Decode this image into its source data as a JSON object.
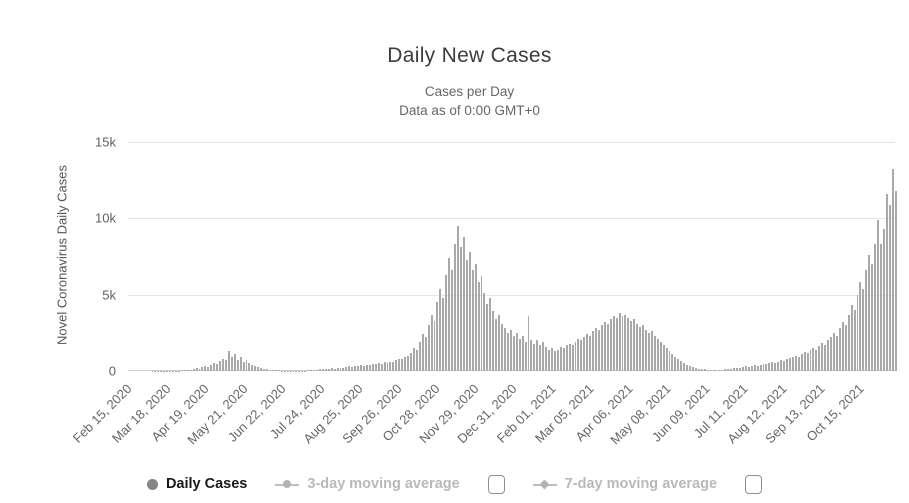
{
  "header": {
    "title": "Daily New Cases",
    "subtitle_line1": "Cases per Day",
    "subtitle_line2": "Data as of 0:00 GMT+0"
  },
  "chart_data": {
    "type": "bar",
    "title": "Daily New Cases",
    "subtitle": [
      "Cases per Day",
      "Data as of 0:00 GMT+0"
    ],
    "ylabel": "Novel Coronavirus Daily Cases",
    "xlabel": "",
    "ylim": [
      0,
      15000
    ],
    "grid": "horizontal",
    "legend_position": "bottom",
    "bar_color": "#a9a9a9",
    "yticks": [
      {
        "label": "15k",
        "value": 15000
      },
      {
        "label": "10k",
        "value": 10000
      },
      {
        "label": "5k",
        "value": 5000
      },
      {
        "label": "0",
        "value": 0
      }
    ],
    "categories": [
      "Feb 15, 2020",
      "Mar 18, 2020",
      "Apr 19, 2020",
      "May 21, 2020",
      "Jun 22, 2020",
      "Jul 24, 2020",
      "Aug 25, 2020",
      "Sep 26, 2020",
      "Oct 28, 2020",
      "Nov 29, 2020",
      "Dec 31, 2020",
      "Feb 01, 2021",
      "Mar 05, 2021",
      "Apr 06, 2021",
      "May 08, 2021",
      "Jun 09, 2021",
      "Jul 11, 2021",
      "Aug 12, 2021",
      "Sep 13, 2021",
      "Oct 15, 2021"
    ],
    "series": [
      {
        "name": "Daily Cases",
        "type": "bar",
        "values": [
          0,
          0,
          0,
          0,
          0,
          0,
          5,
          5,
          10,
          10,
          10,
          15,
          15,
          20,
          20,
          25,
          30,
          30,
          40,
          50,
          60,
          80,
          120,
          180,
          150,
          250,
          320,
          280,
          420,
          520,
          460,
          650,
          800,
          700,
          1320,
          900,
          1100,
          750,
          950,
          600,
          700,
          500,
          420,
          350,
          280,
          200,
          140,
          100,
          80,
          60,
          50,
          40,
          30,
          25,
          20,
          20,
          15,
          15,
          10,
          20,
          30,
          40,
          50,
          60,
          80,
          100,
          120,
          110,
          150,
          170,
          160,
          200,
          230,
          220,
          260,
          300,
          280,
          340,
          320,
          380,
          360,
          420,
          400,
          460,
          440,
          520,
          490,
          560,
          530,
          620,
          580,
          700,
          800,
          760,
          900,
          1000,
          1200,
          1500,
          1400,
          1900,
          2400,
          2200,
          3000,
          3700,
          3300,
          4500,
          5400,
          4800,
          6300,
          7400,
          6600,
          8300,
          9500,
          8100,
          8800,
          7300,
          7800,
          6600,
          7000,
          5800,
          6200,
          5100,
          4400,
          4800,
          3900,
          3400,
          3700,
          3100,
          2800,
          2500,
          2700,
          2300,
          2500,
          2100,
          2300,
          1900,
          3600,
          2000,
          1800,
          2000,
          1700,
          1900,
          1600,
          1400,
          1500,
          1300,
          1400,
          1600,
          1500,
          1700,
          1800,
          1700,
          1900,
          2100,
          2000,
          2200,
          2400,
          2300,
          2600,
          2800,
          2700,
          3000,
          3200,
          3100,
          3400,
          3600,
          3500,
          3800,
          3600,
          3700,
          3500,
          3300,
          3400,
          3100,
          2900,
          3000,
          2700,
          2500,
          2600,
          2300,
          2100,
          1900,
          1700,
          1500,
          1300,
          1100,
          950,
          800,
          650,
          500,
          400,
          300,
          250,
          200,
          150,
          120,
          100,
          80,
          60,
          50,
          50,
          60,
          80,
          100,
          120,
          150,
          180,
          220,
          200,
          260,
          300,
          280,
          340,
          380,
          350,
          420,
          480,
          440,
          520,
          580,
          540,
          620,
          700,
          650,
          760,
          830,
          900,
          1000,
          950,
          1100,
          1250,
          1150,
          1350,
          1500,
          1400,
          1650,
          1850,
          1700,
          2000,
          2200,
          2500,
          2300,
          2800,
          3200,
          3000,
          3700,
          4300,
          4000,
          5000,
          5800,
          5400,
          6600,
          7600,
          7000,
          8300,
          9900,
          8300,
          9300,
          11600,
          10900,
          13200,
          11800
        ]
      }
    ],
    "hidden_series": [
      "3-day moving average",
      "7-day moving average"
    ]
  },
  "legend": {
    "items": [
      {
        "label": "Daily Cases",
        "marker": "circle",
        "active": true
      },
      {
        "label": "3-day moving average",
        "marker": "line-circle",
        "active": false,
        "checkbox": "unchecked"
      },
      {
        "label": "7-day moving average",
        "marker": "line-diamond",
        "active": false,
        "checkbox": "unchecked"
      }
    ]
  },
  "colors": {
    "bar": "#a9a9a9",
    "gridline": "#e6e6e6",
    "axis_line": "#cfcfcf",
    "title_text": "#3c3c3c",
    "subtitle_text": "#666666",
    "tick_text": "#606060",
    "legend_active_text": "#1a1a1a",
    "legend_muted_text": "#b9b9b9"
  }
}
